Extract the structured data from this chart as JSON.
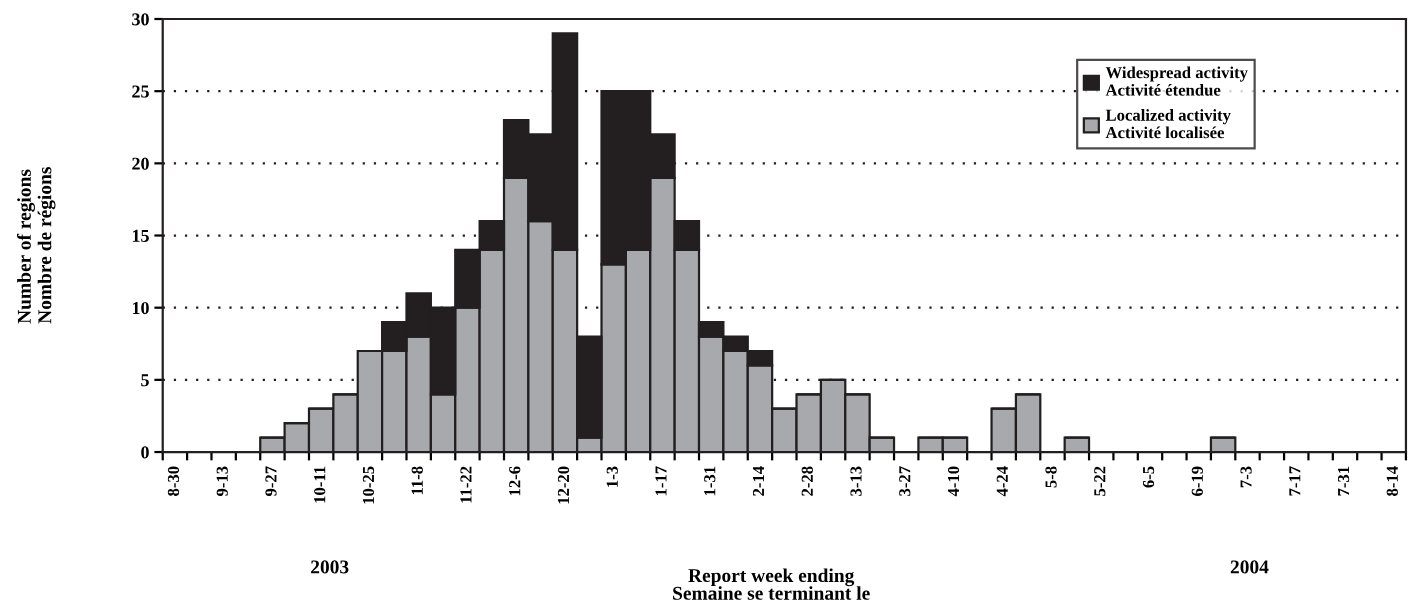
{
  "chart_data": {
    "type": "bar",
    "stacked": true,
    "categories": [
      "8-30",
      null,
      "9-13",
      null,
      "9-27",
      null,
      "10-11",
      null,
      "10-25",
      null,
      "11-8",
      null,
      "11-22",
      null,
      "12-6",
      null,
      "12-20",
      null,
      "1-3",
      null,
      "1-17",
      null,
      "1-31",
      null,
      "2-14",
      null,
      "2-28",
      null,
      "3-13",
      null,
      "3-27",
      null,
      "4-10",
      null,
      "4-24",
      null,
      "5-8",
      null,
      "5-22",
      null,
      "6-5",
      null,
      "6-19",
      null,
      "7-3",
      null,
      "7-17",
      null,
      "7-31",
      null,
      "8-14"
    ],
    "series": [
      {
        "name": "Localized activity\nActivité localisée",
        "color": "#a7a9ac",
        "values": [
          0,
          0,
          0,
          0,
          1,
          2,
          3,
          4,
          7,
          7,
          8,
          4,
          10,
          14,
          19,
          16,
          14,
          1,
          13,
          14,
          19,
          14,
          8,
          7,
          6,
          3,
          4,
          5,
          4,
          1,
          0,
          1,
          1,
          0,
          3,
          4,
          0,
          1,
          0,
          0,
          0,
          0,
          0,
          1,
          0,
          0,
          0,
          0,
          0,
          0,
          0
        ]
      },
      {
        "name": "Widespread activity\nActivité étendue",
        "color": "#231f20",
        "values": [
          0,
          0,
          0,
          0,
          0,
          0,
          0,
          0,
          0,
          2,
          3,
          6,
          4,
          2,
          4,
          6,
          15,
          7,
          12,
          11,
          3,
          2,
          1,
          1,
          1,
          0,
          0,
          0,
          0,
          0,
          0,
          0,
          0,
          0,
          0,
          0,
          0,
          0,
          0,
          0,
          0,
          0,
          0,
          0,
          0,
          0,
          0,
          0,
          0,
          0,
          0
        ]
      }
    ],
    "ylabel": "Number of regions\nNombre de régions",
    "xlabel": "Report week ending\nSemaine se terminant le",
    "annotations": [
      "2003",
      "2004"
    ],
    "ylim": [
      0,
      30
    ],
    "yticks": [
      0,
      5,
      10,
      15,
      20,
      25,
      30
    ],
    "grid": "y",
    "legend": "top right"
  }
}
